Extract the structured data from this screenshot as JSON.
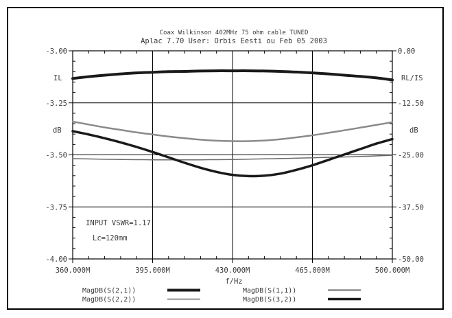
{
  "chart_data": {
    "type": "line",
    "title_lines": [
      "Coax Wilkinson 402MHz 75 ohm cable TUNED",
      "Aplac 7.70 User: Orbis Eesti ou  Feb 05 2003"
    ],
    "xlabel": "f/Hz",
    "xlim": [
      360,
      500
    ],
    "x_ticks": [
      360,
      395,
      430,
      465,
      500
    ],
    "x_tick_labels": [
      "360.000M",
      "395.000M",
      "430.000M",
      "465.000M",
      "500.000M"
    ],
    "left_axis": {
      "ylim": [
        -4.0,
        -3.0
      ],
      "ticks": [
        -3.0,
        -3.25,
        -3.5,
        -3.75,
        -4.0
      ],
      "tick_labels": [
        "-3.00",
        "-3.25",
        "-3.50",
        "-3.75",
        "-4.00"
      ],
      "label_top": "IL",
      "unit": "dB"
    },
    "right_axis": {
      "ylim": [
        -50.0,
        0.0
      ],
      "ticks": [
        0.0,
        -12.5,
        -25.0,
        -37.5,
        -50.0
      ],
      "tick_labels": [
        "0.00",
        "-12.50",
        "-25.00",
        "-37.50",
        "-50.00"
      ],
      "label_top": "RL/IS",
      "unit": "dB"
    },
    "grid": true,
    "annotations": [
      "INPUT VSWR=1.17",
      "Lc=120mm"
    ],
    "x": [
      360,
      367,
      374,
      381,
      388,
      395,
      402,
      409,
      416,
      423,
      430,
      437,
      444,
      451,
      458,
      465,
      472,
      479,
      486,
      493,
      500
    ],
    "series": [
      {
        "name": "MagDB(S(2,1))",
        "axis": "left",
        "color": "#1a1a1a",
        "width": 4,
        "values": [
          -3.133,
          -3.124,
          -3.117,
          -3.111,
          -3.106,
          -3.103,
          -3.1,
          -3.099,
          -3.097,
          -3.096,
          -3.096,
          -3.096,
          -3.097,
          -3.099,
          -3.102,
          -3.106,
          -3.111,
          -3.117,
          -3.123,
          -3.13,
          -3.14
        ]
      },
      {
        "name": "MagDB(S(1,1))",
        "axis": "right",
        "color": "#8a8a8a",
        "width": 2.5,
        "values": [
          -17.0,
          -17.7,
          -18.4,
          -19.0,
          -19.6,
          -20.1,
          -20.6,
          -21.0,
          -21.35,
          -21.6,
          -21.7,
          -21.7,
          -21.55,
          -21.25,
          -20.8,
          -20.3,
          -19.7,
          -19.1,
          -18.45,
          -17.8,
          -17.15
        ]
      },
      {
        "name": "MagDB(S(2,2))",
        "axis": "right",
        "color": "#6a6a6a",
        "width": 1.5,
        "values": [
          -25.9,
          -25.98,
          -26.05,
          -26.1,
          -26.15,
          -26.18,
          -26.2,
          -26.2,
          -26.18,
          -26.15,
          -26.1,
          -26.03,
          -25.96,
          -25.88,
          -25.8,
          -25.7,
          -25.6,
          -25.5,
          -25.38,
          -25.25,
          -25.1
        ]
      },
      {
        "name": "MagDB(S(3,2))",
        "axis": "right",
        "color": "#1a1a1a",
        "width": 3.5,
        "values": [
          -19.3,
          -20.1,
          -21.0,
          -22.0,
          -23.1,
          -24.3,
          -25.6,
          -26.9,
          -28.1,
          -29.1,
          -29.8,
          -30.1,
          -30.0,
          -29.5,
          -28.6,
          -27.5,
          -26.2,
          -24.9,
          -23.6,
          -22.3,
          -21.2
        ]
      }
    ],
    "legend": [
      {
        "label": "MagDB(S(2,1))",
        "series": 0
      },
      {
        "label": "MagDB(S(1,1))",
        "series": 1
      },
      {
        "label": "MagDB(S(2,2))",
        "series": 2
      },
      {
        "label": "MagDB(S(3,2))",
        "series": 3
      }
    ]
  }
}
